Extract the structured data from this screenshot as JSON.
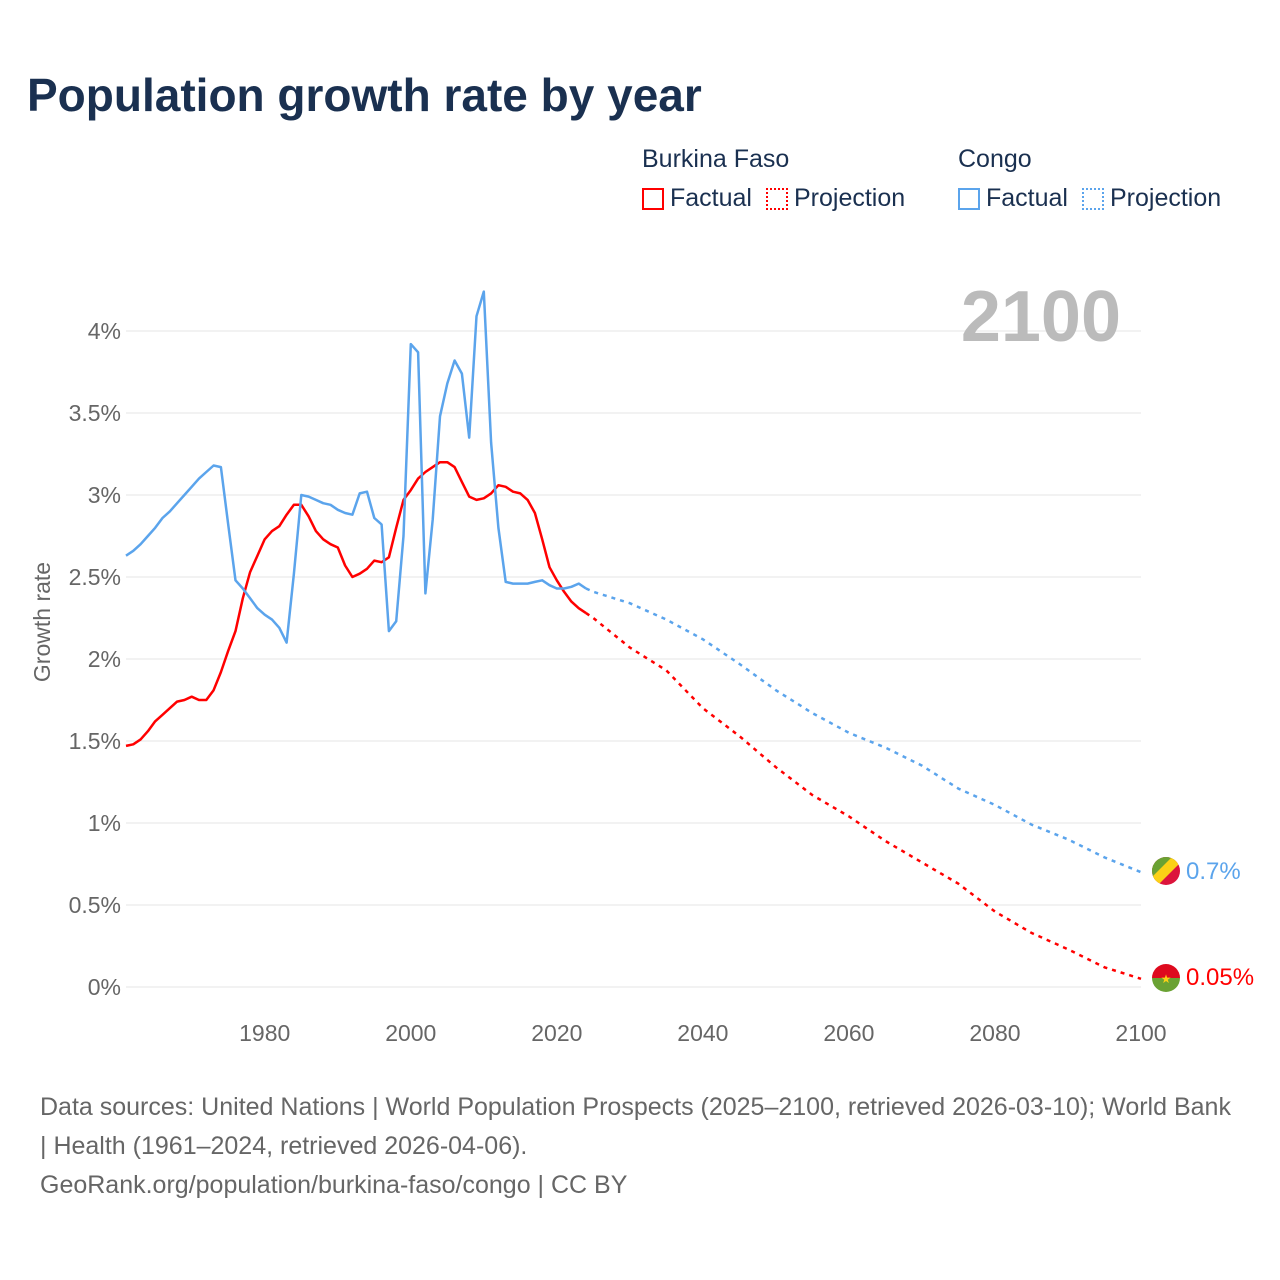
{
  "title": "Population growth rate by year",
  "year_label": "2100",
  "legend": [
    {
      "name": "Burkina Faso",
      "factual": "Factual",
      "projection": "Projection",
      "color": "#ff0000"
    },
    {
      "name": "Congo",
      "factual": "Factual",
      "projection": "Projection",
      "color": "#5ba4ec"
    }
  ],
  "footer": {
    "line1": "Data sources: United Nations | World Population Prospects (2025–2100, retrieved 2026-03-10); World Bank | Health (1961–2024, retrieved 2026-04-06).",
    "line2": "GeoRank.org/population/burkina-faso/congo | CC BY"
  },
  "chart_data": {
    "type": "line",
    "title": "Population growth rate by year",
    "xlabel": "",
    "ylabel": "Growth rate",
    "xlim": [
      1961,
      2100
    ],
    "ylim": [
      0,
      4.3
    ],
    "xticks": [
      1980,
      2000,
      2020,
      2040,
      2060,
      2080,
      2100
    ],
    "xtick_labels": [
      "1980",
      "2000",
      "2020",
      "2040",
      "2060",
      "2080",
      "2100"
    ],
    "yticks": [
      0,
      0.5,
      1,
      1.5,
      2,
      2.5,
      3,
      3.5,
      4
    ],
    "ytick_labels": [
      "0%",
      "0.5%",
      "1%",
      "1.5%",
      "2%",
      "2.5%",
      "3%",
      "3.5%",
      "4%"
    ],
    "grid": true,
    "legend_position": "top-right",
    "series": [
      {
        "name": "Burkina Faso",
        "color": "#ff0000",
        "end_label": "0.05%",
        "factual": {
          "start_year": 1961,
          "values": [
            1.47,
            1.48,
            1.51,
            1.56,
            1.62,
            1.66,
            1.7,
            1.74,
            1.75,
            1.77,
            1.75,
            1.75,
            1.81,
            1.92,
            2.05,
            2.17,
            2.37,
            2.53,
            2.63,
            2.73,
            2.78,
            2.81,
            2.88,
            2.94,
            2.94,
            2.87,
            2.78,
            2.73,
            2.7,
            2.68,
            2.57,
            2.5,
            2.52,
            2.55,
            2.6,
            2.59,
            2.62,
            2.8,
            2.97,
            3.03,
            3.1,
            3.14,
            3.17,
            3.2,
            3.2,
            3.17,
            3.08,
            2.99,
            2.97,
            2.98,
            3.01,
            3.06,
            3.05,
            3.02,
            3.01,
            2.97,
            2.89,
            2.73,
            2.56,
            2.48,
            2.41,
            2.35,
            2.31,
            2.28
          ]
        },
        "projection": {
          "years": [
            2024,
            2025,
            2030,
            2035,
            2040,
            2045,
            2050,
            2055,
            2060,
            2065,
            2070,
            2075,
            2080,
            2085,
            2090,
            2095,
            2100
          ],
          "values": [
            2.28,
            2.25,
            2.07,
            1.93,
            1.7,
            1.53,
            1.34,
            1.17,
            1.04,
            0.89,
            0.76,
            0.63,
            0.46,
            0.33,
            0.23,
            0.12,
            0.05
          ]
        }
      },
      {
        "name": "Congo",
        "color": "#5ba4ec",
        "end_label": "0.7%",
        "factual": {
          "start_year": 1961,
          "values": [
            2.63,
            2.66,
            2.7,
            2.75,
            2.8,
            2.86,
            2.9,
            2.95,
            3.0,
            3.05,
            3.1,
            3.14,
            3.18,
            3.17,
            2.82,
            2.48,
            2.43,
            2.37,
            2.31,
            2.27,
            2.24,
            2.19,
            2.1,
            2.52,
            3.0,
            2.99,
            2.97,
            2.95,
            2.94,
            2.91,
            2.89,
            2.88,
            3.01,
            3.02,
            2.86,
            2.82,
            2.17,
            2.23,
            2.75,
            3.92,
            3.87,
            2.4,
            2.85,
            3.48,
            3.68,
            3.82,
            3.74,
            3.35,
            4.09,
            4.24,
            3.32,
            2.8,
            2.47,
            2.46,
            2.46,
            2.46,
            2.47,
            2.48,
            2.45,
            2.43,
            2.43,
            2.44,
            2.46,
            2.43
          ]
        },
        "projection": {
          "years": [
            2024,
            2025,
            2030,
            2035,
            2040,
            2045,
            2050,
            2055,
            2060,
            2065,
            2070,
            2075,
            2080,
            2085,
            2090,
            2095,
            2100
          ],
          "values": [
            2.43,
            2.41,
            2.34,
            2.24,
            2.12,
            1.97,
            1.81,
            1.67,
            1.55,
            1.46,
            1.35,
            1.21,
            1.11,
            0.99,
            0.9,
            0.79,
            0.7
          ]
        }
      }
    ]
  }
}
